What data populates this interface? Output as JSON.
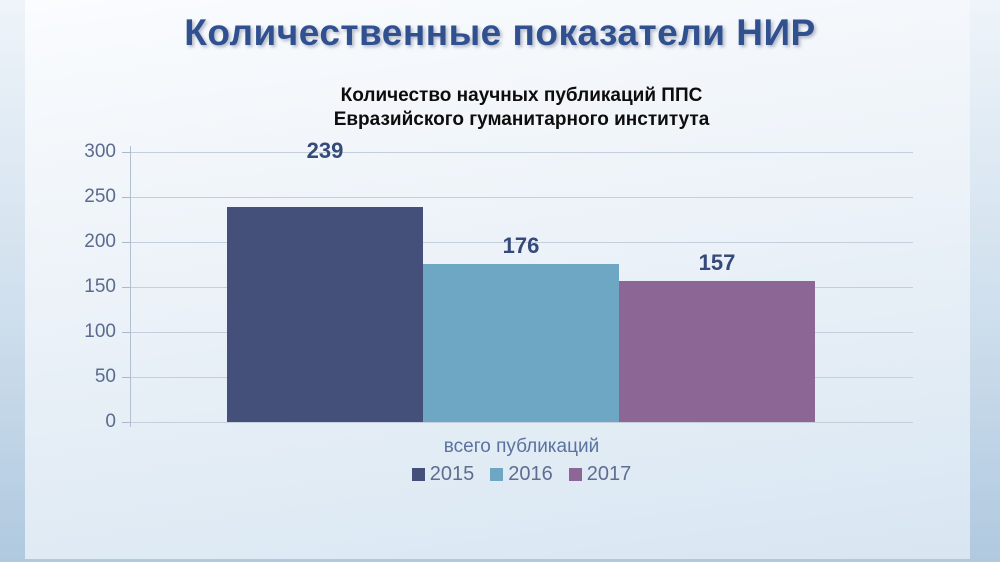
{
  "slide": {
    "title": "Количественные показатели НИР"
  },
  "chart": {
    "title_lines": [
      "Количество научных публикаций ППС",
      "Евразийского гуманитарного института"
    ],
    "xlabel": "всего публикаций"
  },
  "chart_data": {
    "type": "bar",
    "title": "Количество научных публикаций ППС Евразийского гуманитарного института",
    "categories": [
      "всего публикаций"
    ],
    "series": [
      {
        "name": "2015",
        "values": [
          239
        ],
        "color": "#44507a"
      },
      {
        "name": "2016",
        "values": [
          176
        ],
        "color": "#6ea7c4"
      },
      {
        "name": "2017",
        "values": [
          157
        ],
        "color": "#8c6795"
      }
    ],
    "xlabel": "всего публикаций",
    "ylabel": "",
    "ylim": [
      0,
      300
    ],
    "yticks": [
      0,
      50,
      100,
      150,
      200,
      250,
      300
    ],
    "grid": true,
    "legend_position": "bottom",
    "data_labels": true
  },
  "colors": {
    "slide_title": "#31508f",
    "chart_title": "#0d0d0d",
    "axis_text": "#5a6b8e",
    "data_label": "#36497b",
    "xlabel_text": "#5b72a0",
    "legend_text": "#5e6e90",
    "gridline": "#c5cfdc"
  }
}
